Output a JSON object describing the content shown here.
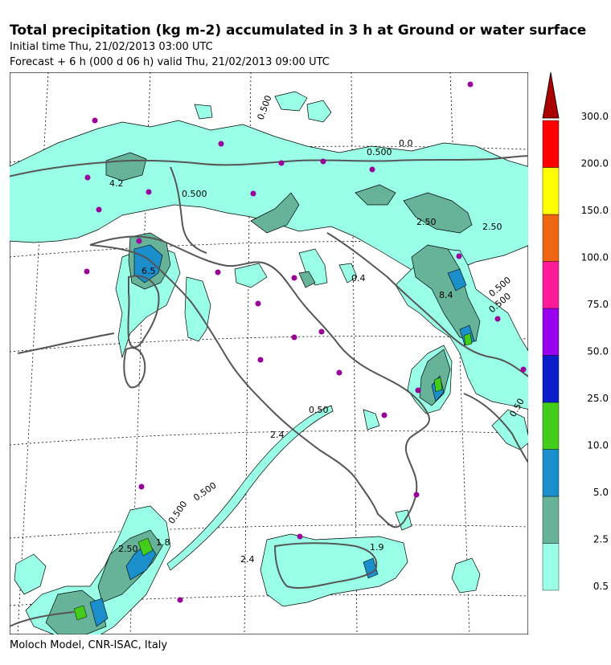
{
  "header": {
    "title": "Total precipitation (kg m-2) accumulated in   3 h at Ground or water surface",
    "initial_time": "Initial time  Thu, 21/02/2013  03:00 UTC",
    "forecast": "Forecast +   6 h  (000 d 06 h)  valid Thu, 21/02/2013 09:00 UTC"
  },
  "footer": {
    "credit": "Moloch Model, CNR-ISAC, Italy"
  },
  "legend": {
    "levels": [
      {
        "label": "0.5",
        "color": "#99ffe6"
      },
      {
        "label": "2.5",
        "color": "#66b399"
      },
      {
        "label": "5.0",
        "color": "#1a8fcc"
      },
      {
        "label": "10.0",
        "color": "#44cc1a"
      },
      {
        "label": "25.0",
        "color": "#0a1ecc"
      },
      {
        "label": "50.0",
        "color": "#9900ee"
      },
      {
        "label": "75.0",
        "color": "#ff1a99"
      },
      {
        "label": "100.0",
        "color": "#ee6611"
      },
      {
        "label": "150.0",
        "color": "#ffff00"
      },
      {
        "label": "200.0",
        "color": "#ff0000"
      },
      {
        "label": "300.0",
        "color": "#aa0000"
      }
    ]
  },
  "map_labels": [
    {
      "text": "0.500",
      "key": "a"
    },
    {
      "text": "0.500",
      "key": "b"
    },
    {
      "text": "0.0",
      "key": "c"
    },
    {
      "text": "4.2",
      "key": "d"
    },
    {
      "text": "0.500",
      "key": "e"
    },
    {
      "text": "2.50",
      "key": "f"
    },
    {
      "text": "2.50",
      "key": "g"
    },
    {
      "text": "6.5",
      "key": "h"
    },
    {
      "text": "0.4",
      "key": "i"
    },
    {
      "text": "8.4",
      "key": "j"
    },
    {
      "text": "0.500",
      "key": "k"
    },
    {
      "text": "0.500",
      "key": "l"
    },
    {
      "text": "0.50",
      "key": "m"
    },
    {
      "text": "2.4",
      "key": "n"
    },
    {
      "text": "0.500",
      "key": "o"
    },
    {
      "text": "0.500",
      "key": "p"
    },
    {
      "text": "2.50",
      "key": "q"
    },
    {
      "text": "1.8",
      "key": "r"
    },
    {
      "text": "2.4",
      "key": "s"
    },
    {
      "text": "1.9",
      "key": "t"
    },
    {
      "text": "0.50",
      "key": "u"
    }
  ]
}
